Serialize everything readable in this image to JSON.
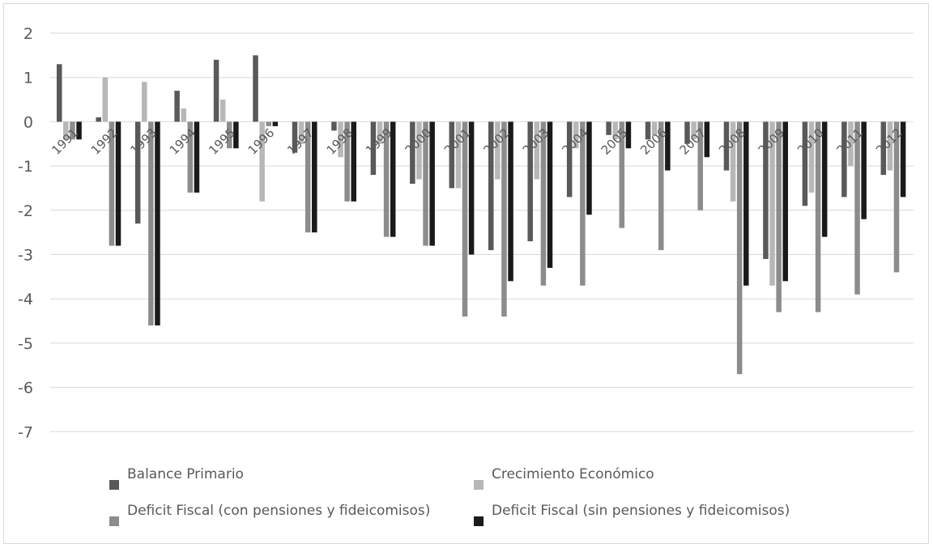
{
  "chart_data": {
    "type": "bar",
    "title": "",
    "xlabel": "",
    "ylabel": "",
    "ylim": [
      -7,
      2
    ],
    "yticks": [
      2,
      1,
      0,
      -1,
      -2,
      -3,
      -4,
      -5,
      -6,
      -7
    ],
    "grid": true,
    "legend_position": "bottom",
    "categories": [
      "1991",
      "1992",
      "1993",
      "1994",
      "1995",
      "1996",
      "1997",
      "1998",
      "1999",
      "2000",
      "2001",
      "2002",
      "2003",
      "2004",
      "2005",
      "2006",
      "2007",
      "2008",
      "2009",
      "2010",
      "2011",
      "2012"
    ],
    "series": [
      {
        "name": "Balance Primario",
        "color": "#595959",
        "values": [
          1.3,
          0.1,
          -2.3,
          0.7,
          1.4,
          1.5,
          -0.7,
          -0.2,
          -1.2,
          -1.4,
          -1.5,
          -2.9,
          -2.7,
          -1.7,
          -0.3,
          -0.4,
          -0.5,
          -1.1,
          -3.1,
          -1.9,
          -1.7,
          -1.2
        ]
      },
      {
        "name": "Crecimiento Económico",
        "color": "#b7b7b7",
        "values": [
          -0.4,
          1.0,
          0.9,
          0.3,
          0.5,
          -1.8,
          -0.5,
          -0.8,
          -0.5,
          -1.3,
          -1.5,
          -1.3,
          -1.3,
          -0.6,
          -0.4,
          -0.3,
          -0.4,
          -1.8,
          -3.7,
          -1.6,
          -1.0,
          -1.1
        ]
      },
      {
        "name": "Deficit Fiscal (con pensiones y fideicomisos)",
        "color": "#8c8c8c",
        "values": [
          -0.4,
          -2.8,
          -4.6,
          -1.6,
          -0.6,
          -0.1,
          -2.5,
          -1.8,
          -2.6,
          -2.8,
          -4.4,
          -4.4,
          -3.7,
          -3.7,
          -2.4,
          -2.9,
          -2.0,
          -5.7,
          -4.3,
          -4.3,
          -3.9,
          -3.4
        ]
      },
      {
        "name": "Deficit Fiscal (sin pensiones y fideicomisos)",
        "color": "#1a1a1a",
        "values": [
          -0.4,
          -2.8,
          -4.6,
          -1.6,
          -0.6,
          -0.1,
          -2.5,
          -1.8,
          -2.6,
          -2.8,
          -3.0,
          -3.6,
          -3.3,
          -2.1,
          -0.6,
          -1.1,
          -0.8,
          -3.7,
          -3.6,
          -2.6,
          -2.2,
          -1.7
        ]
      }
    ]
  }
}
